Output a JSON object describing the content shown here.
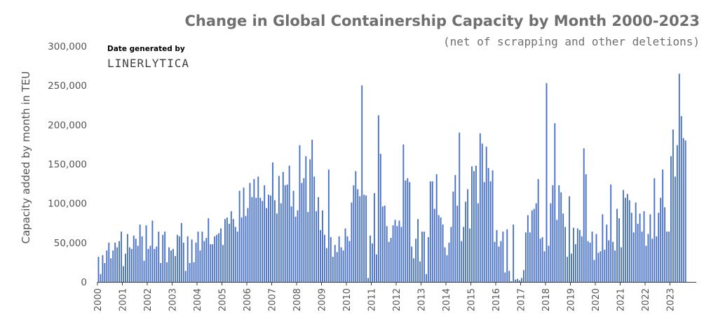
{
  "chart_data": {
    "type": "bar",
    "title": "Change in Global Containership Capacity by Month 2000-2023",
    "subtitle": "(net of scrapping and other deletions)",
    "ylabel": "Capacity added by month in TEU",
    "xlabel": "",
    "ylim": [
      0,
      300000
    ],
    "yticks": [
      "0",
      "50,000",
      "100,000",
      "150,000",
      "200,000",
      "250,000",
      "300,000"
    ],
    "year_labels": [
      "2000",
      "2001",
      "2002",
      "2003",
      "2004",
      "2005",
      "2006",
      "2007",
      "2008",
      "2009",
      "2010",
      "2011",
      "2012",
      "2013",
      "2014",
      "2015",
      "2016",
      "2017",
      "2018",
      "2019",
      "2020",
      "2021",
      "2022",
      "2023"
    ],
    "source_line1": "Date generated by",
    "source_line2": "LINERLYTICA",
    "bar_color": "#4a72c4",
    "grid": false,
    "legend": "none",
    "monthly_values": [
      [
        32000,
        10000,
        34000,
        24000,
        40000,
        50000,
        30000,
        40000,
        50000,
        44000,
        52000,
        64000
      ],
      [
        20000,
        36000,
        61000,
        44000,
        42000,
        59000,
        55000,
        46000,
        73000,
        58000,
        27000,
        72000
      ],
      [
        42000,
        46000,
        78000,
        42000,
        45000,
        64000,
        24000,
        60000,
        64000,
        25000,
        44000,
        40000
      ],
      [
        42000,
        33000,
        60000,
        58000,
        75000,
        50000,
        14000,
        58000,
        24000,
        54000,
        25000,
        50000
      ],
      [
        64000,
        40000,
        64000,
        52000,
        56000,
        81000,
        48000,
        48000,
        58000,
        60000,
        62000,
        68000
      ],
      [
        47000,
        80000,
        82000,
        74000,
        90000,
        80000,
        70000,
        64000,
        116000,
        82000,
        120000,
        84000
      ],
      [
        94000,
        126000,
        108000,
        131000,
        107000,
        134000,
        107000,
        103000,
        123000,
        94000,
        111000,
        110000
      ],
      [
        152000,
        104000,
        87000,
        135000,
        100000,
        140000,
        123000,
        124000,
        148000,
        96000,
        116000,
        83000
      ],
      [
        91000,
        174000,
        126000,
        132000,
        160000,
        89000,
        156000,
        181000,
        134000,
        90000,
        108000,
        66000
      ],
      [
        91000,
        60000,
        43000,
        143000,
        57000,
        32000,
        47000,
        38000,
        58000,
        44000,
        40000,
        68000
      ],
      [
        58000,
        52000,
        101000,
        123000,
        141000,
        118000,
        109000,
        250000,
        111000,
        110000,
        5000,
        59000
      ],
      [
        49000,
        113000,
        35000,
        212000,
        163000,
        96000,
        97000,
        71000,
        51000,
        56000,
        72000,
        79000
      ],
      [
        71000,
        78000,
        70000,
        175000,
        129000,
        132000,
        127000,
        45000,
        30000,
        55000,
        80000,
        26000
      ],
      [
        64000,
        64000,
        10000,
        57000,
        128000,
        128000,
        93000,
        137000,
        85000,
        82000,
        73000,
        44000
      ],
      [
        34000,
        50000,
        70000,
        115000,
        136000,
        97000,
        190000,
        52000,
        70000,
        102000,
        118000,
        68000
      ],
      [
        147000,
        141000,
        148000,
        100000,
        189000,
        176000,
        127000,
        172000,
        145000,
        128000,
        142000,
        51000
      ],
      [
        66000,
        45000,
        52000,
        64000,
        12000,
        67000,
        14000,
        1000,
        73000,
        3000,
        4000,
        2000
      ],
      [
        5000,
        15000,
        63000,
        85000,
        63000,
        91000,
        93000,
        100000,
        131000,
        55000,
        57000,
        39000
      ],
      [
        253000,
        46000,
        100000,
        123000,
        202000,
        79000,
        123000,
        114000,
        87000,
        70000,
        32000,
        109000
      ],
      [
        36000,
        69000,
        48000,
        68000,
        66000,
        58000,
        170000,
        137000,
        52000,
        50000,
        64000,
        28000
      ],
      [
        61000,
        37000,
        39000,
        86000,
        41000,
        73000,
        53000,
        124000,
        51000,
        40000,
        93000,
        81000
      ],
      [
        44000,
        117000,
        107000,
        112000,
        104000,
        88000,
        63000,
        101000,
        74000,
        87000,
        64000,
        90000
      ],
      [
        46000,
        61000,
        86000,
        55000,
        132000,
        58000,
        88000,
        107000,
        143000,
        95000,
        64000,
        64000
      ],
      [
        160000,
        194000,
        134000,
        174000,
        265000,
        211000,
        183000,
        180000
      ]
    ]
  }
}
